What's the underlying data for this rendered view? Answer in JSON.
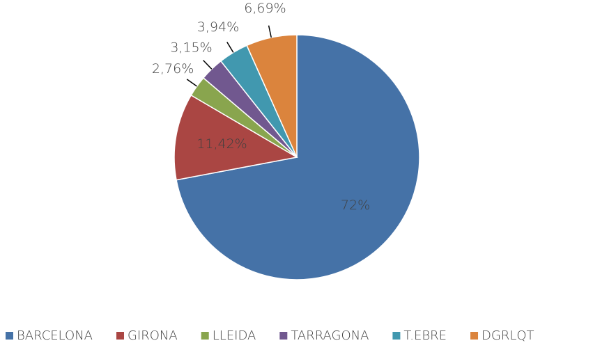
{
  "chart_data": {
    "type": "pie",
    "categories": [
      "BARCELONA",
      "GIRONA",
      "LLEIDA",
      "TARRAGONA",
      "T.EBRE",
      "DGRLQT"
    ],
    "values": [
      72,
      11.42,
      2.76,
      3.15,
      3.94,
      6.69
    ],
    "value_labels": [
      "72%",
      "11,42%",
      "2,76%",
      "3,15%",
      "3,94%",
      "6,69%"
    ],
    "colors": [
      "#4572a7",
      "#aa4643",
      "#89a54e",
      "#71588f",
      "#4198af",
      "#db843d"
    ],
    "legend": "bottom"
  }
}
